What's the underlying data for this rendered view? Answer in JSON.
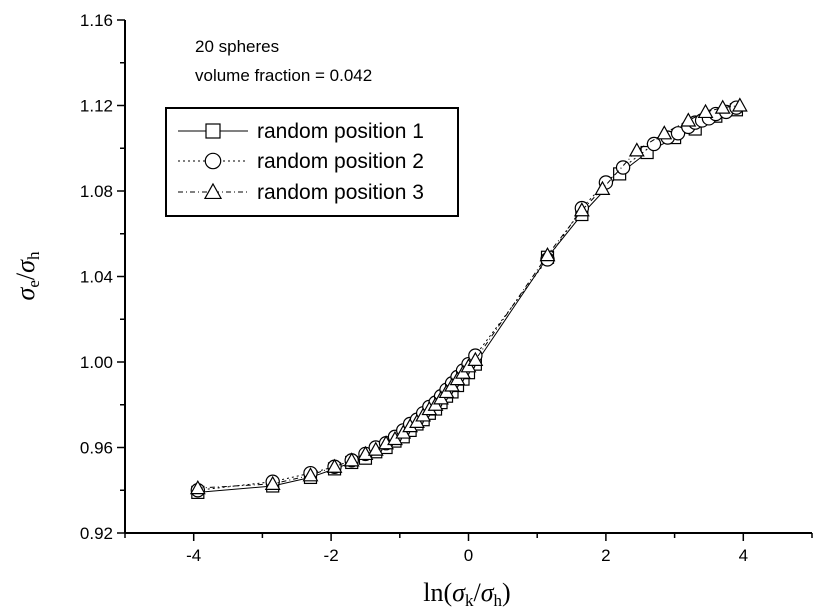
{
  "chart_data": {
    "type": "line",
    "title": "",
    "annotations": [
      "20 spheres",
      "volume fraction = 0.042"
    ],
    "xlabel": {
      "prefix": "ln(",
      "num_sym": "σ",
      "num_sub": "k",
      "slash": "/",
      "den_sym": "σ",
      "den_sub": "h",
      "suffix": ")"
    },
    "ylabel": {
      "num_sym": "σ",
      "num_sub": "e",
      "slash": "/",
      "den_sym": "σ",
      "den_sub": "h"
    },
    "xlim": [
      -5,
      5
    ],
    "ylim": [
      0.92,
      1.16
    ],
    "xticks": [
      -4,
      -2,
      0,
      2,
      4
    ],
    "xtick_labels": [
      "-4",
      "-2",
      "0",
      "2",
      "4"
    ],
    "yticks": [
      0.92,
      0.96,
      1.0,
      1.04,
      1.08,
      1.12,
      1.16
    ],
    "ytick_labels": [
      "0.92",
      "0.96",
      "1.00",
      "1.04",
      "1.08",
      "1.12",
      "1.16"
    ],
    "grid": false,
    "legend_position": "upper-left",
    "series": [
      {
        "name": "random position 1",
        "marker": "square",
        "line": "solid",
        "x": [
          -3.94,
          -2.85,
          -2.3,
          -1.95,
          -1.7,
          -1.5,
          -1.35,
          -1.2,
          -1.07,
          -0.95,
          -0.85,
          -0.75,
          -0.66,
          -0.57,
          -0.48,
          -0.4,
          -0.32,
          -0.24,
          -0.16,
          -0.08,
          0.0,
          0.1,
          1.15,
          1.65,
          2.2,
          2.6,
          3.0,
          3.3,
          3.6,
          3.9
        ],
        "y": [
          0.939,
          0.942,
          0.946,
          0.95,
          0.953,
          0.955,
          0.958,
          0.96,
          0.963,
          0.965,
          0.968,
          0.971,
          0.973,
          0.976,
          0.978,
          0.981,
          0.984,
          0.986,
          0.989,
          0.992,
          0.995,
          0.999,
          1.049,
          1.069,
          1.088,
          1.098,
          1.105,
          1.109,
          1.115,
          1.118
        ]
      },
      {
        "name": "random position 2",
        "marker": "circle",
        "line": "dotted",
        "x": [
          -3.94,
          -2.85,
          -2.3,
          -1.95,
          -1.7,
          -1.5,
          -1.35,
          -1.2,
          -1.07,
          -0.95,
          -0.85,
          -0.75,
          -0.66,
          -0.57,
          -0.48,
          -0.4,
          -0.32,
          -0.24,
          -0.16,
          -0.08,
          0.0,
          0.1,
          1.15,
          1.65,
          2.0,
          2.25,
          2.7,
          2.9,
          3.05,
          3.2,
          3.3,
          3.4,
          3.5,
          3.6,
          3.75,
          3.9
        ],
        "y": [
          0.94,
          0.944,
          0.948,
          0.951,
          0.954,
          0.957,
          0.96,
          0.962,
          0.965,
          0.968,
          0.971,
          0.973,
          0.976,
          0.979,
          0.981,
          0.984,
          0.987,
          0.99,
          0.993,
          0.996,
          0.999,
          1.003,
          1.048,
          1.072,
          1.084,
          1.091,
          1.102,
          1.105,
          1.107,
          1.11,
          1.112,
          1.113,
          1.114,
          1.116,
          1.117,
          1.119
        ]
      },
      {
        "name": "random position 3",
        "marker": "triangle",
        "line": "dashed",
        "x": [
          -3.94,
          -2.85,
          -2.3,
          -1.95,
          -1.7,
          -1.5,
          -1.35,
          -1.2,
          -1.07,
          -0.95,
          -0.85,
          -0.75,
          -0.66,
          -0.57,
          -0.48,
          -0.4,
          -0.32,
          -0.24,
          -0.16,
          -0.08,
          0.0,
          0.1,
          1.15,
          1.65,
          1.95,
          2.45,
          2.85,
          3.2,
          3.45,
          3.7,
          3.95
        ],
        "y": [
          0.941,
          0.943,
          0.947,
          0.951,
          0.954,
          0.957,
          0.959,
          0.962,
          0.964,
          0.967,
          0.97,
          0.972,
          0.975,
          0.978,
          0.98,
          0.983,
          0.986,
          0.989,
          0.992,
          0.995,
          0.998,
          1.001,
          1.05,
          1.071,
          1.081,
          1.099,
          1.107,
          1.113,
          1.117,
          1.119,
          1.12
        ]
      }
    ]
  }
}
